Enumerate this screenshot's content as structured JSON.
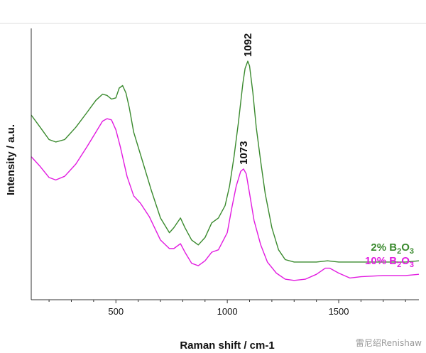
{
  "chart_data": {
    "type": "line",
    "title": "",
    "xlabel": "Raman shift / cm-1",
    "ylabel": "Intensity / a.u.",
    "xlim": [
      120,
      1860
    ],
    "ylim": [
      0,
      100
    ],
    "x_ticks": [
      500,
      1000,
      1500
    ],
    "y_ticks_shown": false,
    "grid": false,
    "series": [
      {
        "name": "2% B2O3",
        "label_main": "2%  B",
        "label_sub": "2",
        "label_o": "O",
        "label_sub2": "3",
        "color": "#3a8a2e",
        "x": [
          120,
          160,
          200,
          230,
          270,
          320,
          370,
          410,
          440,
          460,
          480,
          500,
          515,
          530,
          545,
          560,
          580,
          620,
          660,
          700,
          740,
          760,
          790,
          810,
          840,
          870,
          900,
          930,
          960,
          990,
          1010,
          1030,
          1050,
          1070,
          1080,
          1092,
          1100,
          1115,
          1130,
          1150,
          1170,
          1200,
          1230,
          1260,
          1300,
          1400,
          1450,
          1500,
          1600,
          1700,
          1800,
          1860
        ],
        "y": [
          69,
          64,
          59,
          58,
          59,
          64,
          70,
          75,
          77.5,
          77,
          75.5,
          76,
          80,
          81,
          78,
          72,
          62,
          50,
          38,
          27,
          21,
          23,
          27,
          23,
          18,
          16,
          19,
          25,
          27,
          32,
          40,
          52,
          66,
          82,
          88,
          91,
          89,
          78,
          64,
          50,
          37,
          23,
          14,
          10,
          9,
          9,
          9.5,
          9,
          9,
          9,
          9,
          9.5
        ]
      },
      {
        "name": "10% B2O3",
        "label_main": "10%  B",
        "label_sub": "2",
        "label_o": "O",
        "label_sub2": "3",
        "color": "#e21be0",
        "x": [
          120,
          160,
          200,
          230,
          270,
          320,
          370,
          410,
          440,
          460,
          480,
          500,
          520,
          550,
          580,
          610,
          650,
          700,
          740,
          760,
          790,
          810,
          840,
          870,
          900,
          930,
          960,
          1000,
          1020,
          1040,
          1060,
          1073,
          1085,
          1100,
          1120,
          1150,
          1180,
          1220,
          1260,
          1300,
          1350,
          1400,
          1440,
          1460,
          1500,
          1550,
          1600,
          1700,
          1800,
          1860
        ],
        "y": [
          52,
          48,
          43.5,
          42.5,
          44,
          49,
          56,
          62,
          66.5,
          67.5,
          67,
          63,
          56,
          44,
          36,
          33,
          27.5,
          18,
          14.5,
          14.5,
          16.5,
          13,
          8.5,
          7.5,
          9.5,
          13,
          14,
          21,
          31,
          40,
          46,
          47,
          45,
          37,
          26,
          16,
          9,
          4.5,
          2,
          1.5,
          2,
          4,
          6.5,
          6.5,
          4.5,
          2.5,
          3,
          3.5,
          3.5,
          4
        ]
      }
    ],
    "annotations": [
      {
        "text": "1092",
        "x": 1092,
        "series": 0
      },
      {
        "text": "1073",
        "x": 1073,
        "series": 1
      }
    ]
  },
  "watermark": "雷尼绍Renishaw"
}
